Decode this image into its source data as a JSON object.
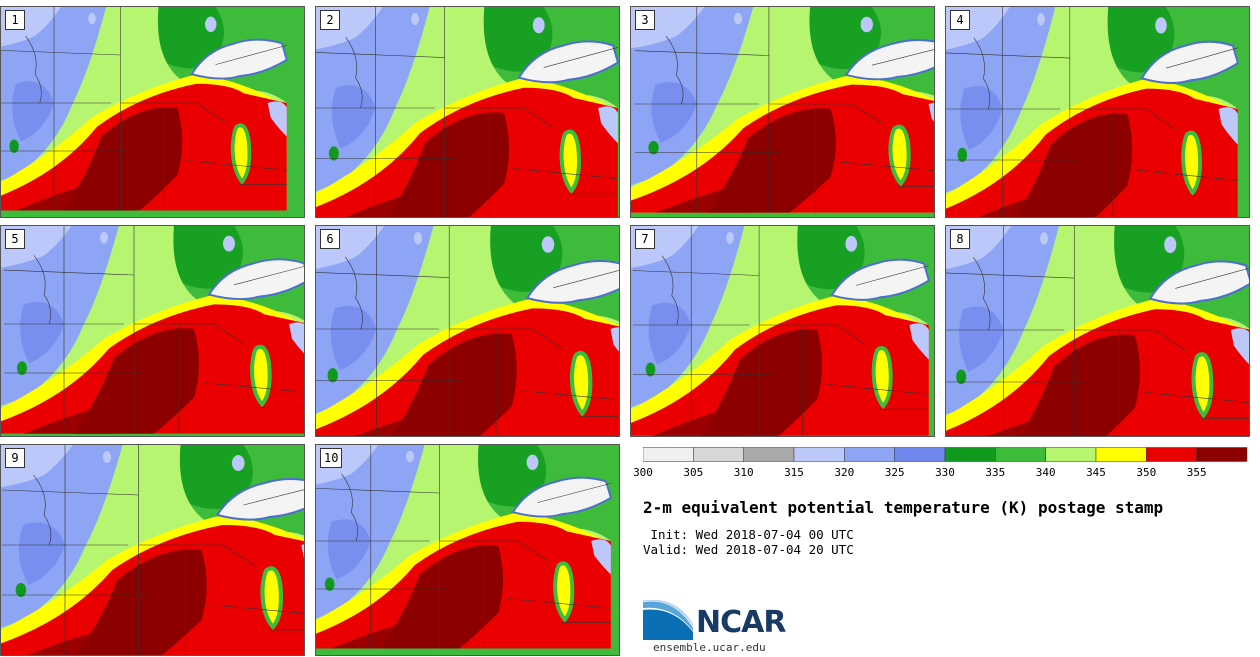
{
  "panels": [
    {
      "label": "1"
    },
    {
      "label": "2"
    },
    {
      "label": "3"
    },
    {
      "label": "4"
    },
    {
      "label": "5"
    },
    {
      "label": "6"
    },
    {
      "label": "7"
    },
    {
      "label": "8"
    },
    {
      "label": "9"
    },
    {
      "label": "10"
    }
  ],
  "colorbar": {
    "colors": [
      "#efefef",
      "#d7d7d7",
      "#aaaaaa",
      "#bcc8fa",
      "#8ea4f4",
      "#6f86ec",
      "#0f9a1e",
      "#3fbb3b",
      "#b6f56f",
      "#ffff00",
      "#ea0000",
      "#8d0000"
    ],
    "ticks": [
      "300",
      "305",
      "310",
      "315",
      "320",
      "325",
      "330",
      "335",
      "340",
      "345",
      "350",
      "355"
    ]
  },
  "title": "2-m equivalent potential temperature (K) postage stamp",
  "init_text": " Init: Wed 2018-07-04 00 UTC",
  "valid_text": "Valid: Wed 2018-07-04 20 UTC",
  "logo": {
    "text": "NCAR",
    "icon": "ncar-logo-icon",
    "color": "#1a3a66"
  },
  "website": "ensemble.ucar.edu"
}
